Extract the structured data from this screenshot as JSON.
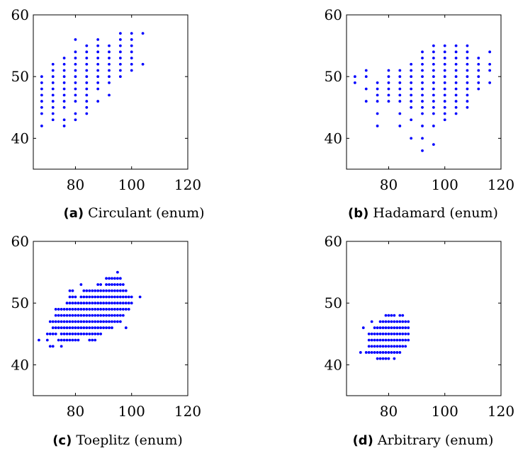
{
  "chart_data": [
    {
      "type": "scatter",
      "caption_label": "(a)",
      "caption_text": "Circulant (enum)",
      "xlim": [
        65,
        120
      ],
      "ylim": [
        35,
        60
      ],
      "xticks": [
        "80",
        "100",
        "120"
      ],
      "yticks": [
        "40",
        "50",
        "60"
      ],
      "xtick_values": [
        80,
        100,
        120
      ],
      "ytick_values": [
        40,
        50,
        60
      ],
      "marker_color": "#0000ff",
      "columns": [
        {
          "x": 68,
          "ys": [
            42,
            44,
            45,
            46,
            47,
            48,
            49,
            50
          ]
        },
        {
          "x": 72,
          "ys": [
            43,
            44,
            45,
            46,
            47,
            48,
            49,
            50,
            51,
            52
          ]
        },
        {
          "x": 76,
          "ys": [
            42,
            43,
            45,
            46,
            47,
            48,
            49,
            50,
            51,
            52,
            53
          ]
        },
        {
          "x": 80,
          "ys": [
            43,
            44,
            46,
            47,
            48,
            49,
            50,
            51,
            52,
            53,
            54,
            56
          ]
        },
        {
          "x": 84,
          "ys": [
            44,
            45,
            46,
            47,
            48,
            49,
            50,
            51,
            52,
            53,
            54,
            55
          ]
        },
        {
          "x": 88,
          "ys": [
            46,
            48,
            49,
            50,
            51,
            52,
            53,
            54,
            55,
            56
          ]
        },
        {
          "x": 92,
          "ys": [
            47,
            49,
            50,
            51,
            52,
            53,
            54,
            55
          ]
        },
        {
          "x": 96,
          "ys": [
            50,
            51,
            52,
            53,
            54,
            55,
            56,
            57
          ]
        },
        {
          "x": 100,
          "ys": [
            51,
            52,
            53,
            54,
            55,
            56,
            57
          ]
        },
        {
          "x": 104,
          "ys": [
            52,
            57
          ]
        }
      ]
    },
    {
      "type": "scatter",
      "caption_label": "(b)",
      "caption_text": "Hadamard (enum)",
      "xlim": [
        65,
        120
      ],
      "ylim": [
        35,
        60
      ],
      "xticks": [
        "80",
        "100",
        "120"
      ],
      "yticks": [
        "40",
        "50",
        "60"
      ],
      "xtick_values": [
        80,
        100,
        120
      ],
      "ytick_values": [
        40,
        50,
        60
      ],
      "marker_color": "#0000ff",
      "columns": [
        {
          "x": 68,
          "ys": [
            49,
            50
          ]
        },
        {
          "x": 72,
          "ys": [
            46,
            48,
            50,
            51
          ]
        },
        {
          "x": 76,
          "ys": [
            42,
            44,
            46,
            47,
            48,
            49
          ]
        },
        {
          "x": 80,
          "ys": [
            46,
            47,
            48,
            49,
            50,
            51
          ]
        },
        {
          "x": 84,
          "ys": [
            42,
            44,
            46,
            47,
            48,
            49,
            50,
            51
          ]
        },
        {
          "x": 88,
          "ys": [
            40,
            43,
            45,
            46,
            47,
            48,
            49,
            50,
            51,
            52
          ]
        },
        {
          "x": 92,
          "ys": [
            38,
            40,
            42,
            44,
            45,
            46,
            47,
            48,
            49,
            50,
            51,
            52,
            53,
            54
          ]
        },
        {
          "x": 96,
          "ys": [
            39,
            42,
            44,
            45,
            46,
            47,
            48,
            49,
            50,
            51,
            52,
            53,
            54,
            55
          ]
        },
        {
          "x": 100,
          "ys": [
            43,
            44,
            45,
            46,
            47,
            48,
            49,
            50,
            51,
            52,
            53,
            54,
            55
          ]
        },
        {
          "x": 104,
          "ys": [
            44,
            45,
            46,
            47,
            48,
            49,
            50,
            51,
            52,
            53,
            54,
            55
          ]
        },
        {
          "x": 108,
          "ys": [
            45,
            46,
            47,
            48,
            49,
            50,
            51,
            52,
            53,
            54,
            55
          ]
        },
        {
          "x": 112,
          "ys": [
            48,
            49,
            50,
            51,
            52,
            53
          ]
        },
        {
          "x": 116,
          "ys": [
            49,
            51,
            52,
            54
          ]
        }
      ]
    },
    {
      "type": "scatter",
      "caption_label": "(c)",
      "caption_text": "Toeplitz (enum)",
      "xlim": [
        65,
        120
      ],
      "ylim": [
        35,
        60
      ],
      "xticks": [
        "80",
        "100",
        "120"
      ],
      "yticks": [
        "40",
        "50",
        "60"
      ],
      "xtick_values": [
        80,
        100,
        120
      ],
      "ytick_values": [
        40,
        50,
        60
      ],
      "marker_color": "#0000ff",
      "rows": [
        {
          "y": 55,
          "xs": [
            [
              95,
              95
            ]
          ]
        },
        {
          "y": 54,
          "xs": [
            [
              91,
              96
            ]
          ]
        },
        {
          "y": 53,
          "xs": [
            [
              82,
              82
            ],
            [
              88,
              89
            ],
            [
              91,
              97
            ]
          ]
        },
        {
          "y": 52,
          "xs": [
            [
              78,
              79
            ],
            [
              83,
              98
            ]
          ]
        },
        {
          "y": 51,
          "xs": [
            [
              78,
              80
            ],
            [
              82,
              100
            ],
            [
              103,
              103
            ]
          ]
        },
        {
          "y": 50,
          "xs": [
            [
              77,
              100
            ]
          ]
        },
        {
          "y": 49,
          "xs": [
            [
              73,
              99
            ]
          ]
        },
        {
          "y": 48,
          "xs": [
            [
              73,
              97
            ]
          ]
        },
        {
          "y": 47,
          "xs": [
            [
              71,
              96
            ]
          ]
        },
        {
          "y": 46,
          "xs": [
            [
              72,
              93
            ],
            [
              98,
              98
            ]
          ]
        },
        {
          "y": 45,
          "xs": [
            [
              70,
              73
            ],
            [
              75,
              89
            ]
          ]
        },
        {
          "y": 44,
          "xs": [
            [
              67,
              67
            ],
            [
              70,
              70
            ],
            [
              74,
              81
            ],
            [
              85,
              87
            ]
          ]
        },
        {
          "y": 43,
          "xs": [
            [
              71,
              72
            ],
            [
              75,
              75
            ]
          ]
        }
      ]
    },
    {
      "type": "scatter",
      "caption_label": "(d)",
      "caption_text": "Arbitrary (enum)",
      "xlim": [
        65,
        120
      ],
      "ylim": [
        35,
        60
      ],
      "xticks": [
        "80",
        "100",
        "120"
      ],
      "yticks": [
        "40",
        "50",
        "60"
      ],
      "xtick_values": [
        80,
        100,
        120
      ],
      "ytick_values": [
        40,
        50,
        60
      ],
      "marker_color": "#0000ff",
      "rows": [
        {
          "y": 48,
          "xs": [
            [
              79,
              82
            ],
            [
              84,
              85
            ]
          ]
        },
        {
          "y": 47,
          "xs": [
            [
              74,
              74
            ],
            [
              77,
              87
            ]
          ]
        },
        {
          "y": 46,
          "xs": [
            [
              71,
              71
            ],
            [
              75,
              87
            ]
          ]
        },
        {
          "y": 45,
          "xs": [
            [
              73,
              87
            ]
          ]
        },
        {
          "y": 44,
          "xs": [
            [
              73,
              87
            ]
          ]
        },
        {
          "y": 43,
          "xs": [
            [
              73,
              86
            ]
          ]
        },
        {
          "y": 42,
          "xs": [
            [
              70,
              70
            ],
            [
              72,
              84
            ]
          ]
        },
        {
          "y": 41,
          "xs": [
            [
              76,
              80
            ],
            [
              82,
              82
            ]
          ]
        }
      ]
    }
  ]
}
